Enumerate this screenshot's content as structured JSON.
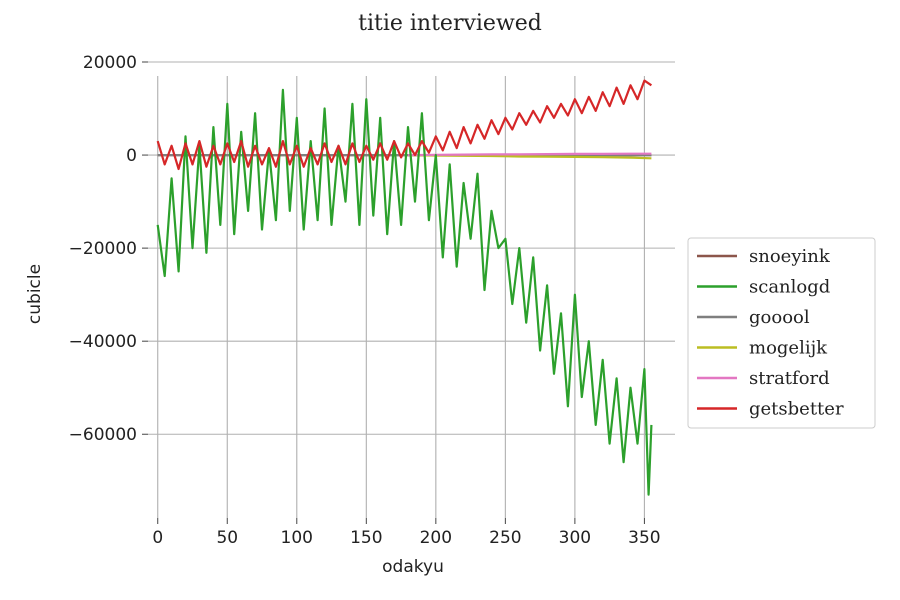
{
  "chart_data": {
    "type": "line",
    "title": "titie interviewed",
    "xlabel": "odakyu",
    "ylabel": "cubicle",
    "xlim": [
      -7,
      372
    ],
    "ylim": [
      -78000,
      20000
    ],
    "xticks": [
      0,
      50,
      100,
      150,
      200,
      250,
      300,
      350
    ],
    "xtick_labels": [
      "0",
      "50",
      "100",
      "150",
      "200",
      "250",
      "300",
      "350"
    ],
    "yticks": [
      20000,
      0,
      -20000,
      -40000,
      -60000
    ],
    "ytick_labels": [
      "20000",
      "0",
      "−20000",
      "−40000",
      "−60000"
    ],
    "grid": true,
    "legend_position": "center-right-outside",
    "x_range": [
      0,
      355
    ],
    "series": [
      {
        "name": "snoeyink",
        "color": "#8c564b",
        "x": [
          0,
          355
        ],
        "values": [
          0,
          0
        ]
      },
      {
        "name": "scanlogd",
        "color": "#2ca02c",
        "x": [
          0,
          5,
          10,
          15,
          20,
          25,
          30,
          35,
          40,
          45,
          50,
          55,
          60,
          65,
          70,
          75,
          80,
          85,
          90,
          95,
          100,
          105,
          110,
          115,
          120,
          125,
          130,
          135,
          140,
          145,
          150,
          155,
          160,
          165,
          170,
          175,
          180,
          185,
          190,
          195,
          200,
          205,
          210,
          215,
          220,
          225,
          230,
          235,
          240,
          245,
          250,
          255,
          260,
          265,
          270,
          275,
          280,
          285,
          290,
          295,
          300,
          305,
          310,
          315,
          320,
          325,
          330,
          335,
          340,
          345,
          350,
          353,
          355
        ],
        "values": [
          -15000,
          -26000,
          -5000,
          -25000,
          4000,
          -20000,
          2000,
          -21000,
          6000,
          -15000,
          11000,
          -17000,
          5000,
          -12000,
          9000,
          -16000,
          1000,
          -14000,
          14000,
          -12000,
          8000,
          -16000,
          3000,
          -14000,
          10000,
          -15000,
          2000,
          -10000,
          11000,
          -15000,
          12000,
          -13000,
          8000,
          -17000,
          3000,
          -15000,
          6000,
          -10000,
          9000,
          -14000,
          0,
          -22000,
          -2000,
          -24000,
          -6000,
          -18000,
          -4000,
          -29000,
          -12000,
          -20000,
          -18000,
          -32000,
          -20000,
          -36000,
          -22000,
          -42000,
          -28000,
          -47000,
          -34000,
          -54000,
          -30000,
          -52000,
          -40000,
          -58000,
          -44000,
          -62000,
          -48000,
          -66000,
          -50000,
          -62000,
          -46000,
          -73000,
          -58000
        ]
      },
      {
        "name": "gooool",
        "color": "#7f7f7f",
        "x": [
          0,
          355
        ],
        "values": [
          0,
          0
        ]
      },
      {
        "name": "mogelijk",
        "color": "#bcbd22",
        "x": [
          180,
          200,
          220,
          240,
          260,
          280,
          300,
          320,
          340,
          355
        ],
        "values": [
          0,
          -100,
          -150,
          -200,
          -300,
          -350,
          -400,
          -450,
          -550,
          -700
        ]
      },
      {
        "name": "stratford",
        "color": "#e377c2",
        "x": [
          180,
          200,
          220,
          240,
          260,
          280,
          300,
          320,
          340,
          355
        ],
        "values": [
          0,
          50,
          100,
          150,
          150,
          200,
          250,
          250,
          300,
          300
        ]
      },
      {
        "name": "getsbetter",
        "color": "#d62728",
        "x": [
          0,
          5,
          10,
          15,
          20,
          25,
          30,
          35,
          40,
          45,
          50,
          55,
          60,
          65,
          70,
          75,
          80,
          85,
          90,
          95,
          100,
          105,
          110,
          115,
          120,
          125,
          130,
          135,
          140,
          145,
          150,
          155,
          160,
          165,
          170,
          175,
          180,
          185,
          190,
          195,
          200,
          205,
          210,
          215,
          220,
          225,
          230,
          235,
          240,
          245,
          250,
          255,
          260,
          265,
          270,
          275,
          280,
          285,
          290,
          295,
          300,
          305,
          310,
          315,
          320,
          325,
          330,
          335,
          340,
          345,
          350,
          355
        ],
        "values": [
          3000,
          -2000,
          2000,
          -3000,
          2500,
          -2000,
          3000,
          -2500,
          2000,
          -2000,
          2500,
          -1500,
          3000,
          -2500,
          2000,
          -2000,
          1500,
          -2500,
          3000,
          -2000,
          2000,
          -2500,
          1500,
          -2000,
          2500,
          -1500,
          2000,
          -2000,
          2500,
          -1500,
          2000,
          -1000,
          2500,
          -1000,
          3000,
          -500,
          2500,
          0,
          3000,
          500,
          4000,
          1000,
          5000,
          1500,
          6000,
          2500,
          6500,
          3500,
          7500,
          4500,
          8000,
          5500,
          9000,
          6500,
          9500,
          7000,
          10500,
          8000,
          11000,
          8500,
          12000,
          9000,
          12500,
          9500,
          13500,
          10500,
          14500,
          11000,
          15000,
          12000,
          16000,
          15000
        ]
      }
    ]
  }
}
